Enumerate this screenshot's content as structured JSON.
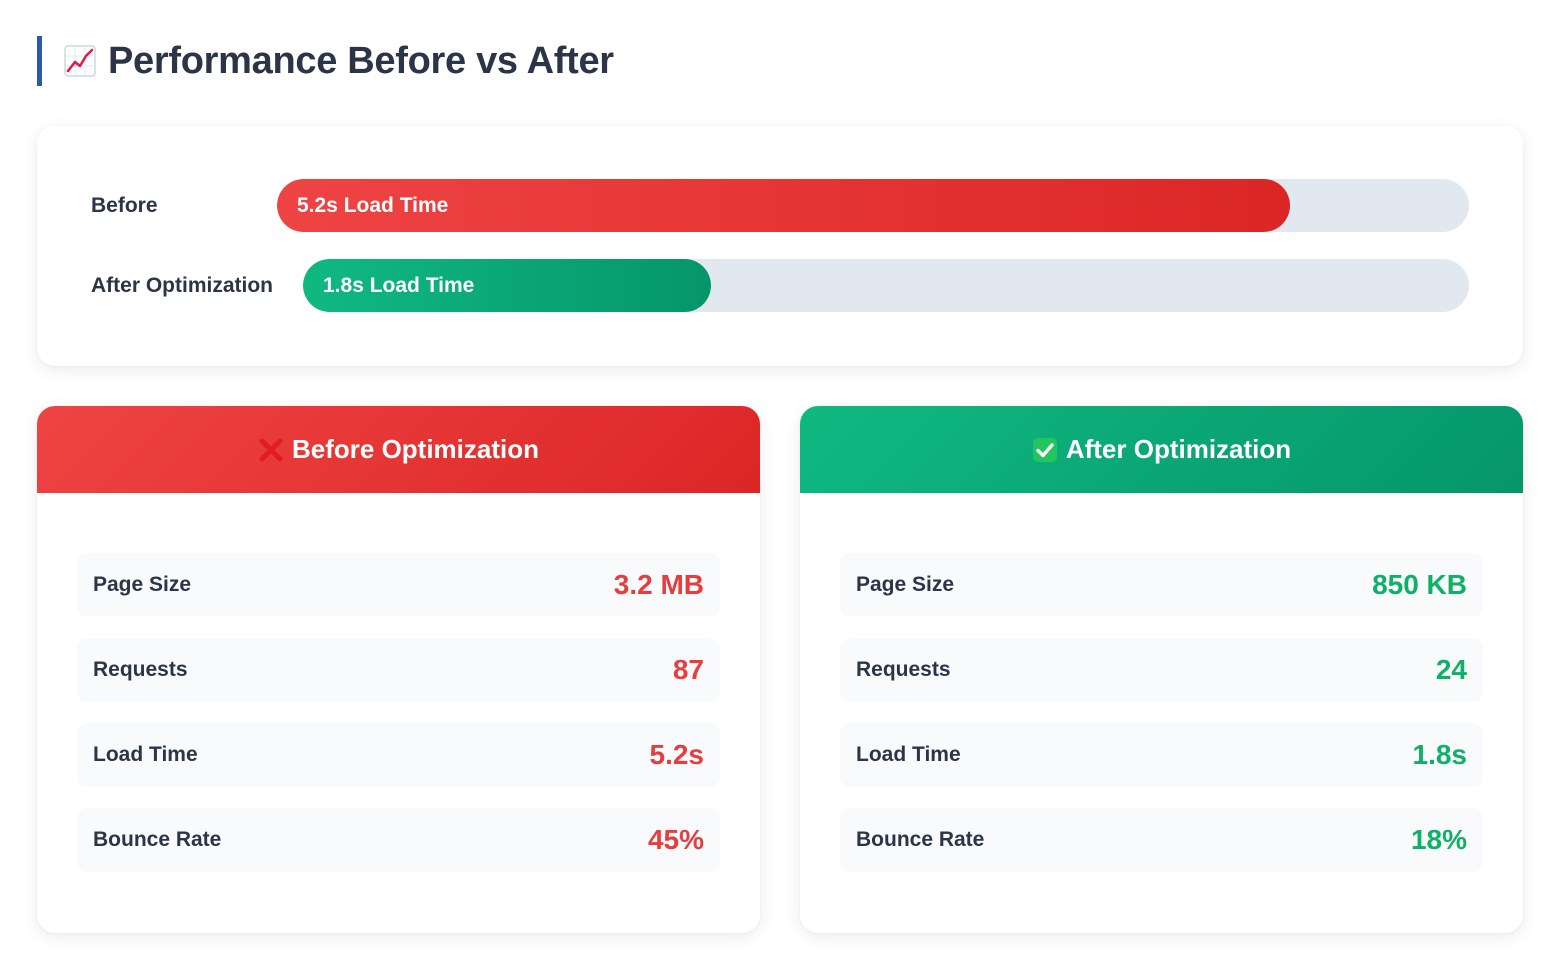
{
  "header": {
    "icon": "chart-increasing-icon",
    "title": "Performance Before vs After"
  },
  "comparison": {
    "before": {
      "label": "Before",
      "bar_text": "5.2s Load Time",
      "fill_fraction": 0.85,
      "color": "#dc2626"
    },
    "after": {
      "label": "After Optimization",
      "bar_text": "1.8s Load Time",
      "fill_fraction": 0.35,
      "color": "#059669"
    }
  },
  "cards": {
    "before": {
      "icon": "cross-mark-icon",
      "title": "Before Optimization",
      "stats": [
        {
          "label": "Page Size",
          "value": "3.2 MB"
        },
        {
          "label": "Requests",
          "value": "87"
        },
        {
          "label": "Load Time",
          "value": "5.2s"
        },
        {
          "label": "Bounce Rate",
          "value": "45%"
        }
      ]
    },
    "after": {
      "icon": "check-mark-icon",
      "title": "After Optimization",
      "stats": [
        {
          "label": "Page Size",
          "value": "850 KB"
        },
        {
          "label": "Requests",
          "value": "24"
        },
        {
          "label": "Load Time",
          "value": "1.8s"
        },
        {
          "label": "Bounce Rate",
          "value": "18%"
        }
      ]
    }
  },
  "colors": {
    "accent": "#2b5aa8",
    "bad": "#e53e3e",
    "good": "#10b068",
    "track": "#e2e8f0"
  }
}
